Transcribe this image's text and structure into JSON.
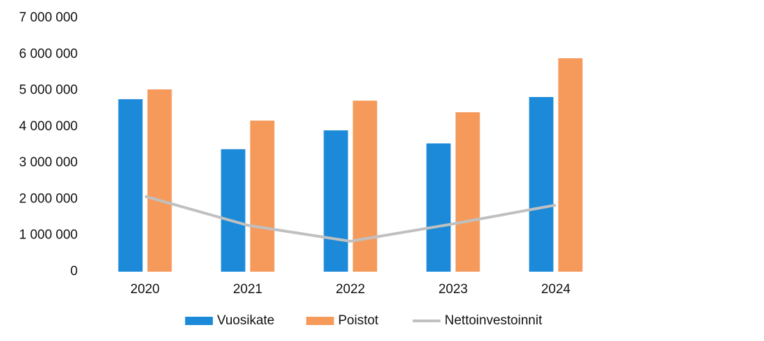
{
  "chart_data": {
    "type": "bar_line",
    "categories": [
      "2020",
      "2021",
      "2022",
      "2023",
      "2024"
    ],
    "series": [
      {
        "name": "Vuosikate",
        "type": "bar",
        "color": "#1c8ad8",
        "values": [
          4760000,
          3380000,
          3900000,
          3540000,
          4820000
        ]
      },
      {
        "name": "Poistot",
        "type": "bar",
        "color": "#f59a5a",
        "values": [
          5030000,
          4170000,
          4720000,
          4400000,
          5890000
        ]
      },
      {
        "name": "Nettoinvestoinnit",
        "type": "line",
        "color": "#c0c0c0",
        "values": [
          2080000,
          1280000,
          840000,
          1320000,
          1840000
        ]
      }
    ],
    "ylim": [
      0,
      7000000
    ],
    "yticks": [
      0,
      {
        "value": 1000000,
        "label": "1 000 000"
      },
      {
        "value": 2000000,
        "label": "2 000 000"
      },
      {
        "value": 3000000,
        "label": "3 000 000"
      },
      {
        "value": 4000000,
        "label": "4 000 000"
      },
      {
        "value": 5000000,
        "label": "5 000 000"
      },
      {
        "value": 6000000,
        "label": "6 000 000"
      },
      {
        "value": 7000000,
        "label": "7 000 000"
      }
    ],
    "grid": false,
    "legend": "bottom"
  }
}
